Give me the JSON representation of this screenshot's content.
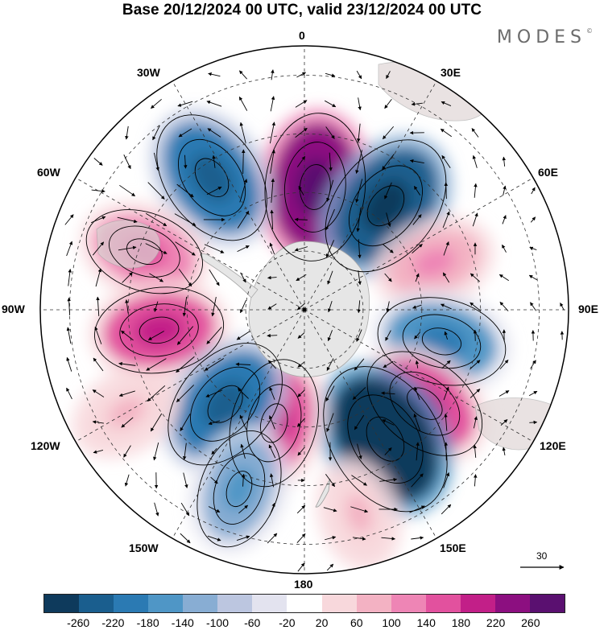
{
  "title": "Base 20/12/2024 00 UTC, valid 23/12/2024 00 UTC",
  "brand": {
    "name": "MODES",
    "mark": "©"
  },
  "longitude_labels": [
    "0",
    "30E",
    "60E",
    "90E",
    "120E",
    "150E",
    "180",
    "150W",
    "120W",
    "90W",
    "60W",
    "30W"
  ],
  "reference_vector_label": "30",
  "colorbar": {
    "colors": [
      "#0e3a5c",
      "#1a5e8e",
      "#2b7ab3",
      "#4f96c6",
      "#88add3",
      "#bcc6e0",
      "#e3e3ef",
      "#ffffff",
      "#f8d8dc",
      "#f3b2c3",
      "#ee85b5",
      "#e2519e",
      "#c21f88",
      "#8c0f80",
      "#5a1070"
    ],
    "tick_labels": [
      "-260",
      "-220",
      "-180",
      "-140",
      "-100",
      "-60",
      "-20",
      "20",
      "60",
      "100",
      "140",
      "180",
      "220",
      "260"
    ]
  },
  "anomalies": [
    {
      "name": "strong positive",
      "color_index": 13,
      "lon": 5,
      "colat": 42
    },
    {
      "name": "negative",
      "color_index": 2,
      "lon": -35,
      "colat": 55
    },
    {
      "name": "negative",
      "color_index": 1,
      "lon": 38,
      "colat": 45
    },
    {
      "name": "positive",
      "color_index": 10,
      "lon": -70,
      "colat": 58
    },
    {
      "name": "positive",
      "color_index": 11,
      "lon": -98,
      "colat": 50
    },
    {
      "name": "positive",
      "color_index": 9,
      "lon": 70,
      "colat": 47
    },
    {
      "name": "negative",
      "color_index": 3,
      "lon": 103,
      "colat": 48
    },
    {
      "name": "positive",
      "color_index": 11,
      "lon": 128,
      "colat": 52
    },
    {
      "name": "negative",
      "color_index": 0,
      "lon": 148,
      "colat": 52
    },
    {
      "name": "positive",
      "color_index": 11,
      "lon": -165,
      "colat": 40
    },
    {
      "name": "negative",
      "color_index": 2,
      "lon": -140,
      "colat": 42
    },
    {
      "name": "positive",
      "color_index": 8,
      "lon": -120,
      "colat": 70
    },
    {
      "name": "positive",
      "color_index": 8,
      "lon": 165,
      "colat": 72
    },
    {
      "name": "negative",
      "color_index": 4,
      "lon": -160,
      "colat": 65
    }
  ]
}
